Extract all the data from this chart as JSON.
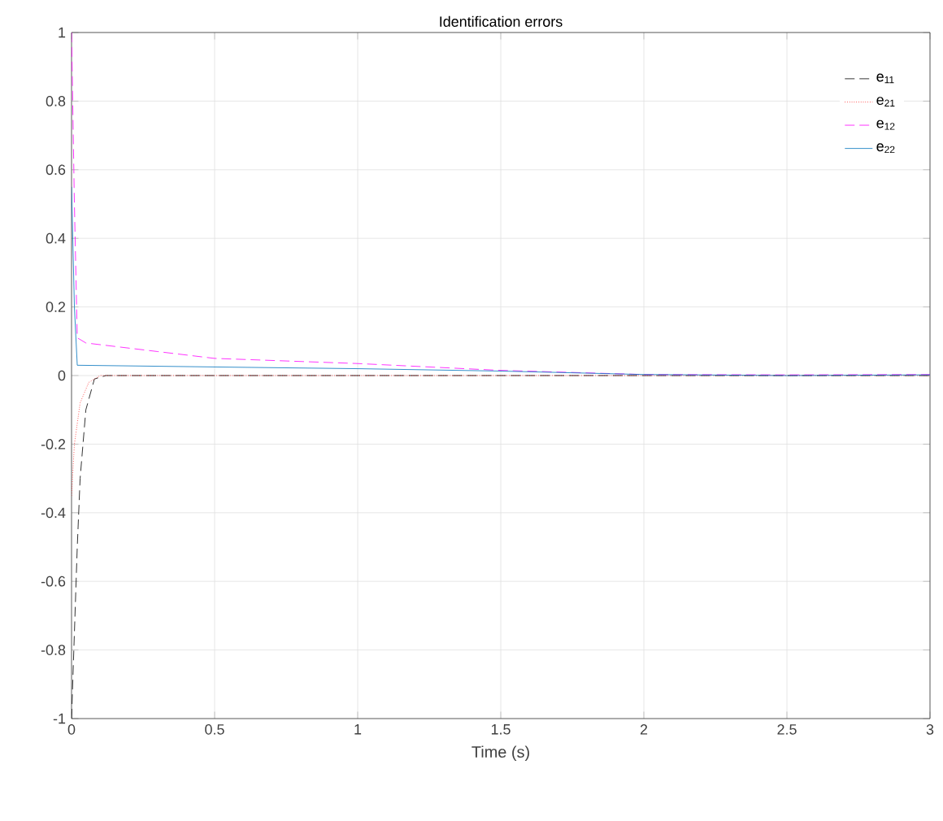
{
  "chart_data": {
    "type": "line",
    "title": "Identification errors",
    "xlabel": "Time (s)",
    "xlim": [
      0,
      3
    ],
    "ylim": [
      -1,
      1
    ],
    "xticks": [
      0,
      0.5,
      1,
      1.5,
      2,
      2.5,
      3
    ],
    "yticks": [
      -1,
      -0.8,
      -0.6,
      -0.4,
      -0.2,
      0,
      0.2,
      0.4,
      0.6,
      0.8,
      1
    ],
    "grid": true,
    "legend": "top right",
    "marker": "none",
    "series": [
      {
        "name": "e$_{11}$",
        "color": "#000000",
        "line_style": "dashed",
        "x": [
          0,
          0.01,
          0.02,
          0.03,
          0.05,
          0.08,
          0.12,
          3
        ],
        "values": [
          -1,
          -0.75,
          -0.5,
          -0.3,
          -0.1,
          -0.01,
          0,
          0
        ]
      },
      {
        "name": "e$_{21}$",
        "color": "#ff0000",
        "line_style": "dotted",
        "x": [
          0,
          0.01,
          0.03,
          0.06,
          0.1,
          3
        ],
        "values": [
          -0.35,
          -0.2,
          -0.08,
          -0.02,
          0,
          0
        ]
      },
      {
        "name": "e$_{12}$",
        "color": "#ff00ff",
        "line_style": "dashed",
        "x": [
          0,
          0.01,
          0.02,
          0.05,
          0.3,
          0.5,
          1,
          1.5,
          2,
          2.5,
          3
        ],
        "values": [
          1,
          0.5,
          0.11,
          0.095,
          0.07,
          0.05,
          0.035,
          0.015,
          0.003,
          0.002,
          0.003
        ]
      },
      {
        "name": "e$_{22}$",
        "color": "#0072bd",
        "line_style": "solid",
        "x": [
          0,
          0.01,
          0.02,
          0.5,
          1,
          1.5,
          2,
          2.5,
          3
        ],
        "values": [
          0.55,
          0.2,
          0.03,
          0.025,
          0.02,
          0.013,
          0.003,
          0,
          0.002
        ]
      }
    ]
  }
}
